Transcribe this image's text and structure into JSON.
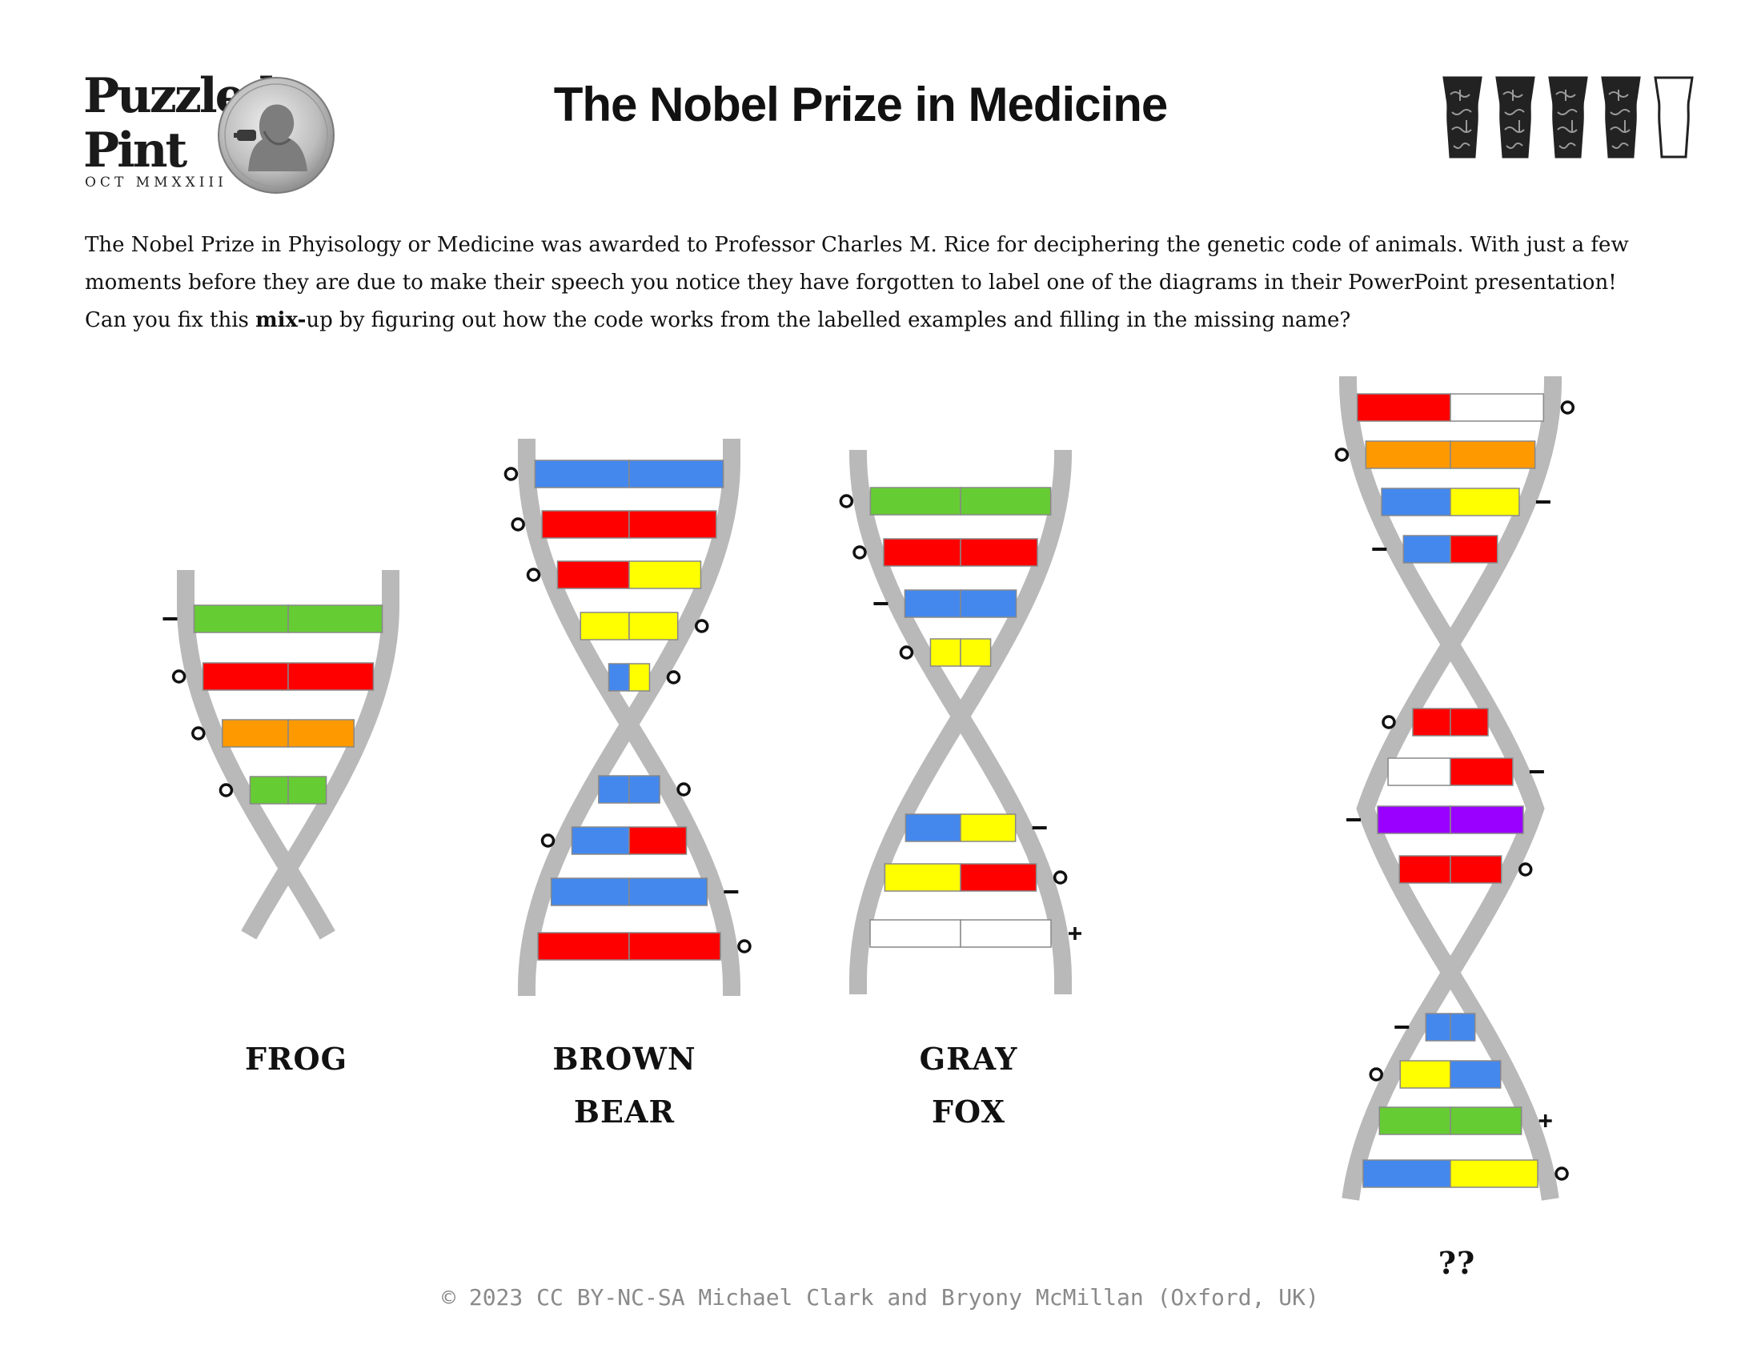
{
  "header": {
    "logo": {
      "line1": "Puzzled",
      "line2": "Pint",
      "date": "OCT MMXXIII"
    },
    "title": "The Nobel Prize in Medicine",
    "difficulty": {
      "filled": 4,
      "total": 5
    }
  },
  "intro": {
    "line1": "The Nobel Prize in Phyisology or Medicine was awarded to Professor Charles M. Rice for deciphering the genetic code of animals.  With just a few",
    "line2": "moments before they are due to make their speech you notice they have forgotten to label one of the diagrams in their PowerPoint presentation!",
    "line3_before": "Can you fix this ",
    "line3_bold": "mix-",
    "line3_after": "up by figuring out how the code works from the labelled examples and filling in the missing name?"
  },
  "colors": {
    "backbone": "#b9b9b9",
    "G": "#66cc33",
    "R": "#ff0000",
    "O": "#ff9900",
    "B": "#4488ee",
    "Y": "#ffff00",
    "P": "#9900ff",
    "W": "#ffffff"
  },
  "diagrams": [
    {
      "label_lines": [
        "FROG"
      ],
      "rungs": [
        {
          "left": "G",
          "right": "G",
          "mark": "−",
          "side": "L"
        },
        {
          "left": "R",
          "right": "R",
          "mark": "o",
          "side": "L"
        },
        {
          "left": "O",
          "right": "O",
          "mark": "o",
          "side": "L"
        },
        {
          "left": "G",
          "right": "G",
          "mark": "o",
          "side": "L"
        }
      ]
    },
    {
      "label_lines": [
        "BROWN",
        "BEAR"
      ],
      "rungs": [
        {
          "left": "B",
          "right": "B",
          "mark": "o",
          "side": "L"
        },
        {
          "left": "R",
          "right": "R",
          "mark": "o",
          "side": "L"
        },
        {
          "left": "R",
          "right": "Y",
          "mark": "o",
          "side": "L"
        },
        {
          "left": "Y",
          "right": "Y",
          "mark": "o",
          "side": "R"
        },
        {
          "left": "B",
          "right": "Y",
          "mark": "o",
          "side": "R"
        },
        {
          "left": "B",
          "right": "B",
          "mark": "o",
          "side": "R"
        },
        {
          "left": "B",
          "right": "R",
          "mark": "o",
          "side": "L"
        },
        {
          "left": "B",
          "right": "B",
          "mark": "−",
          "side": "R"
        },
        {
          "left": "R",
          "right": "R",
          "mark": "o",
          "side": "R"
        }
      ]
    },
    {
      "label_lines": [
        "GRAY",
        "FOX"
      ],
      "rungs": [
        {
          "left": "G",
          "right": "G",
          "mark": "o",
          "side": "L"
        },
        {
          "left": "R",
          "right": "R",
          "mark": "o",
          "side": "L"
        },
        {
          "left": "B",
          "right": "B",
          "mark": "−",
          "side": "L"
        },
        {
          "left": "Y",
          "right": "Y",
          "mark": "o",
          "side": "L"
        },
        {
          "left": "B",
          "right": "Y",
          "mark": "−",
          "side": "R"
        },
        {
          "left": "Y",
          "right": "R",
          "mark": "o",
          "side": "R"
        },
        {
          "left": "W",
          "right": "W",
          "mark": "+",
          "side": "R"
        }
      ]
    },
    {
      "label_lines": [
        "??"
      ],
      "rungs": [
        {
          "left": "R",
          "right": "W",
          "mark": "o",
          "side": "R"
        },
        {
          "left": "O",
          "right": "O",
          "mark": "o",
          "side": "L"
        },
        {
          "left": "B",
          "right": "Y",
          "mark": "−",
          "side": "R"
        },
        {
          "left": "B",
          "right": "R",
          "mark": "−",
          "side": "L"
        },
        {
          "left": "R",
          "right": "R",
          "mark": "o",
          "side": "L"
        },
        {
          "left": "W",
          "right": "R",
          "mark": "−",
          "side": "R"
        },
        {
          "left": "P",
          "right": "P",
          "mark": "−",
          "side": "L"
        },
        {
          "left": "R",
          "right": "R",
          "mark": "o",
          "side": "R"
        },
        {
          "left": "B",
          "right": "B",
          "mark": "−",
          "side": "L"
        },
        {
          "left": "Y",
          "right": "B",
          "mark": "o",
          "side": "L"
        },
        {
          "left": "G",
          "right": "G",
          "mark": "+",
          "side": "R"
        },
        {
          "left": "B",
          "right": "Y",
          "mark": "o",
          "side": "R"
        }
      ]
    }
  ],
  "footer": "© 2023 CC BY-NC-SA Michael Clark and Bryony McMillan (Oxford, UK)"
}
